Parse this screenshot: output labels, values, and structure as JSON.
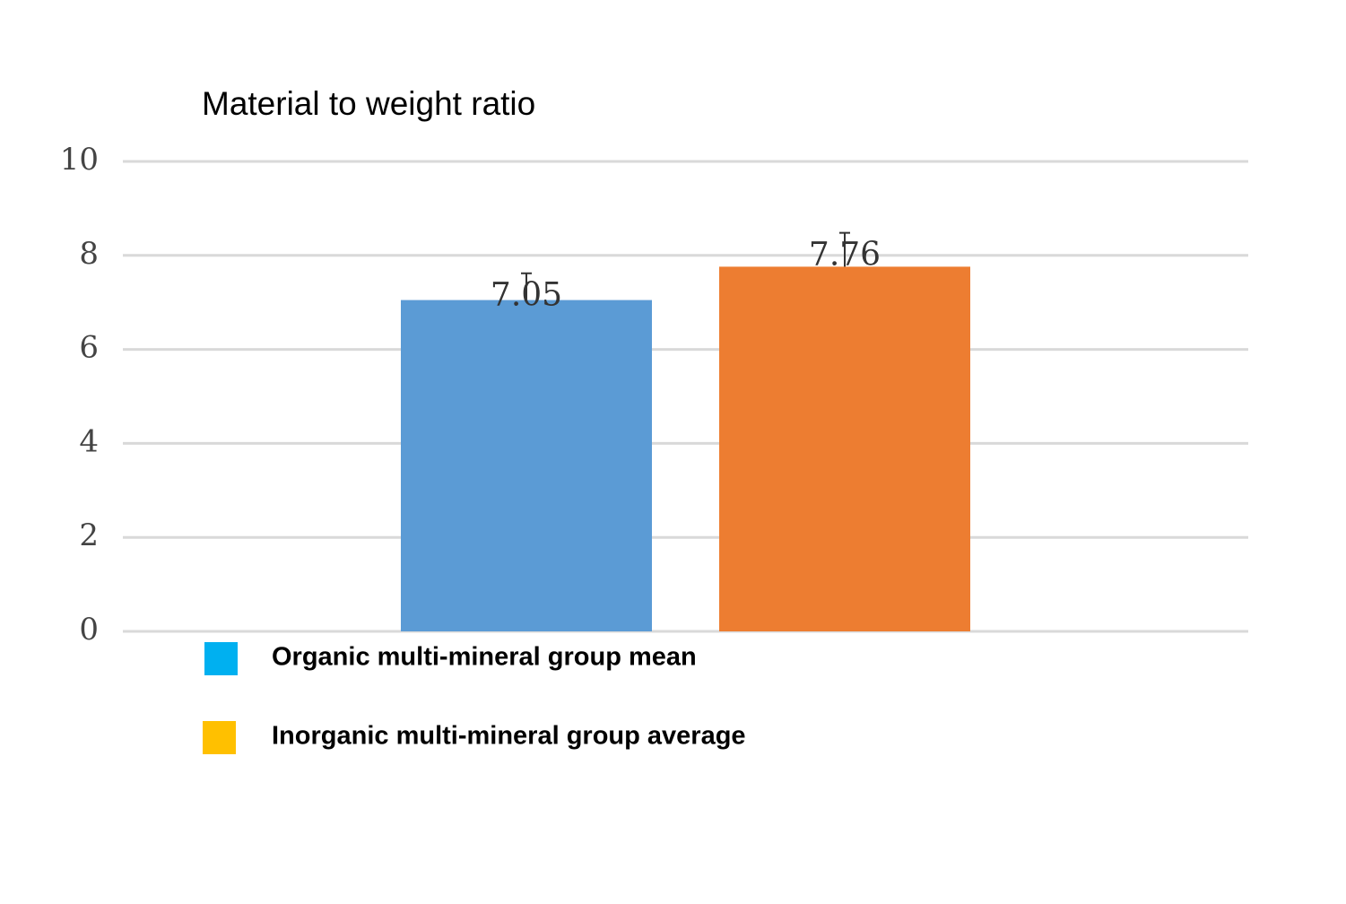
{
  "chart_data": {
    "type": "bar",
    "title": "Material to weight ratio",
    "categories": [
      null
    ],
    "series": [
      {
        "name": "Organic multi-mineral group mean",
        "color": "#5b9bd5",
        "legend_color": "#00b0f0",
        "values": [
          7.05
        ],
        "errors": [
          0.57
        ]
      },
      {
        "name": "Inorganic multi-mineral group average",
        "color": "#ed7d31",
        "legend_color": "#ffc000",
        "values": [
          7.76
        ],
        "errors": [
          0.72
        ]
      }
    ],
    "ylim": [
      0,
      10
    ],
    "yticks": [
      0,
      2,
      4,
      6,
      8,
      10
    ],
    "grid": true
  }
}
